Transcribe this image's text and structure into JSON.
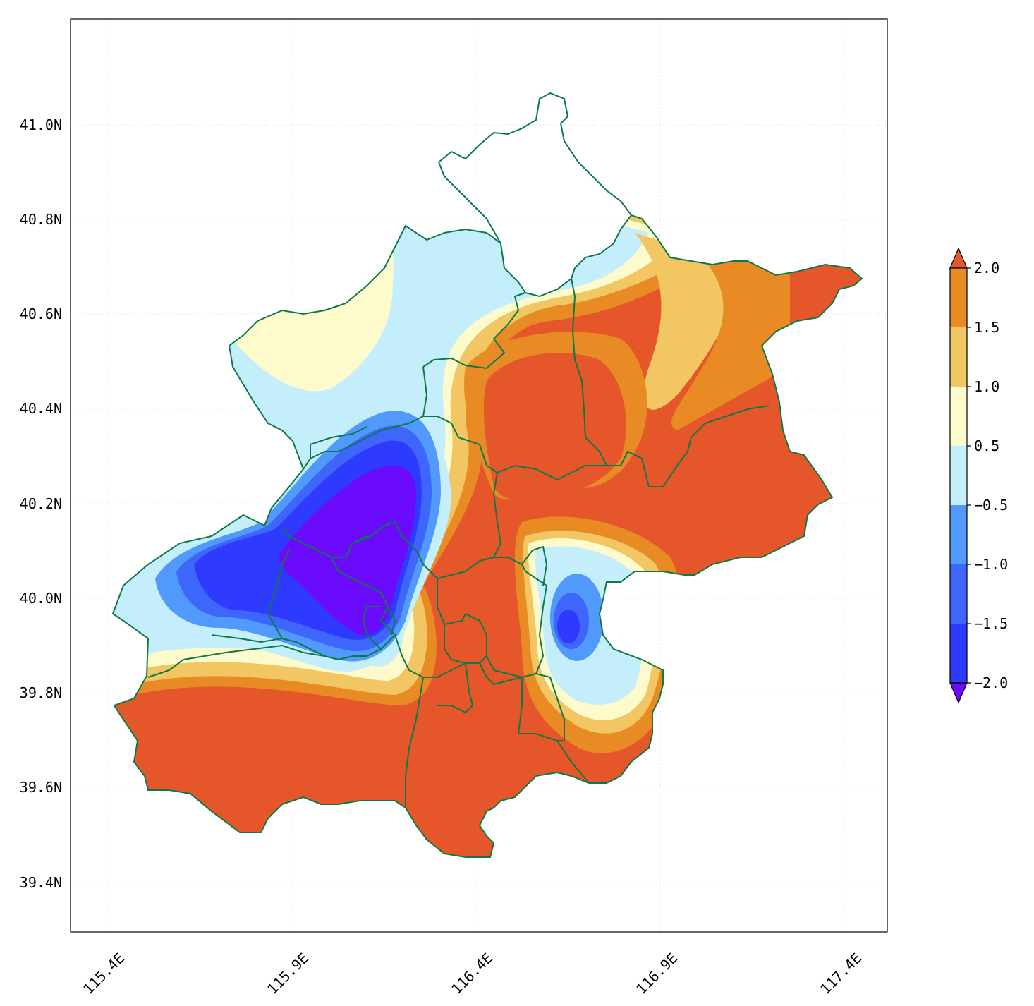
{
  "map": {
    "x_ticks": [
      "115.4E",
      "115.9E",
      "116.4E",
      "116.9E",
      "117.4E"
    ],
    "y_ticks": [
      "41.0N",
      "40.8N",
      "40.6N",
      "40.4N",
      "40.2N",
      "40.0N",
      "39.8N",
      "39.6N",
      "39.4N"
    ],
    "boundary_color": "#0b7a45"
  },
  "colorbar": {
    "ticks": [
      "2.0",
      "1.5",
      "1.0",
      "0.5",
      "−0.5",
      "−1.0",
      "−1.5",
      "−2.0"
    ],
    "colors": {
      "over": "#e5572b",
      "c_1_5_2_0": "#e98b24",
      "c_1_0_1_5": "#f1c663",
      "c_0_5_1_0": "#fdfbcc",
      "c_m0_5_0_5": "#c4eefb",
      "c_m1_0_m0_5": "#5199fd",
      "c_m1_5_m1_0": "#3e66fb",
      "c_m2_0_m1_5": "#2e3afd",
      "under": "#6a0bfb"
    }
  }
}
